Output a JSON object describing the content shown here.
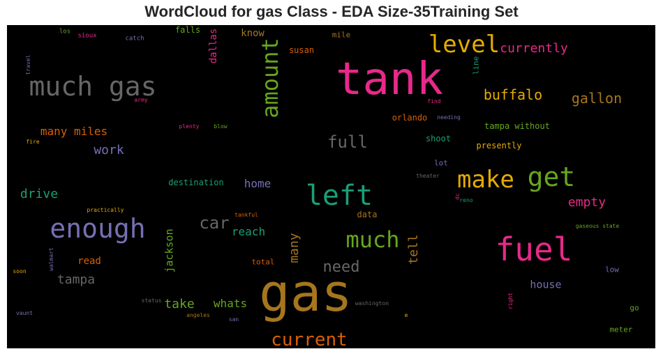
{
  "chart_data": {
    "type": "wordcloud",
    "title": "WordCloud for gas Class - EDA Size-35Training Set",
    "background": "#000000",
    "colormap": "Dark2",
    "words": [
      {
        "text": "gas",
        "weight": 1.0,
        "color": "#a6761d",
        "orientation": "horizontal"
      },
      {
        "text": "tank",
        "weight": 0.8,
        "color": "#e7298a",
        "orientation": "horizontal"
      },
      {
        "text": "much gas",
        "weight": 0.55,
        "color": "#666666",
        "orientation": "horizontal"
      },
      {
        "text": "fuel",
        "weight": 0.65,
        "color": "#e7298a",
        "orientation": "horizontal"
      },
      {
        "text": "left",
        "weight": 0.6,
        "color": "#1b9e77",
        "orientation": "horizontal"
      },
      {
        "text": "enough",
        "weight": 0.55,
        "color": "#7570b3",
        "orientation": "horizontal"
      },
      {
        "text": "get",
        "weight": 0.55,
        "color": "#66a61e",
        "orientation": "horizontal"
      },
      {
        "text": "make",
        "weight": 0.5,
        "color": "#e6ab02",
        "orientation": "horizontal"
      },
      {
        "text": "level",
        "weight": 0.45,
        "color": "#e6ab02",
        "orientation": "horizontal"
      },
      {
        "text": "amount",
        "weight": 0.4,
        "color": "#66a61e",
        "orientation": "vertical"
      },
      {
        "text": "much",
        "weight": 0.4,
        "color": "#66a61e",
        "orientation": "horizontal"
      },
      {
        "text": "current",
        "weight": 0.35,
        "color": "#d95f02",
        "orientation": "horizontal"
      },
      {
        "text": "car",
        "weight": 0.3,
        "color": "#666666",
        "orientation": "horizontal"
      },
      {
        "text": "full",
        "weight": 0.3,
        "color": "#666666",
        "orientation": "horizontal"
      },
      {
        "text": "buffalo",
        "weight": 0.28,
        "color": "#e6ab02",
        "orientation": "horizontal"
      },
      {
        "text": "gallon",
        "weight": 0.26,
        "color": "#a6761d",
        "orientation": "horizontal"
      },
      {
        "text": "need",
        "weight": 0.27,
        "color": "#666666",
        "orientation": "horizontal"
      },
      {
        "text": "empty",
        "weight": 0.25,
        "color": "#e7298a",
        "orientation": "horizontal"
      },
      {
        "text": "currently",
        "weight": 0.24,
        "color": "#e7298a",
        "orientation": "horizontal"
      },
      {
        "text": "many miles",
        "weight": 0.23,
        "color": "#d95f02",
        "orientation": "horizontal"
      },
      {
        "text": "work",
        "weight": 0.23,
        "color": "#7570b3",
        "orientation": "horizontal"
      },
      {
        "text": "drive",
        "weight": 0.24,
        "color": "#1b9e77",
        "orientation": "horizontal"
      },
      {
        "text": "many",
        "weight": 0.22,
        "color": "#a6761d",
        "orientation": "vertical"
      },
      {
        "text": "tampa",
        "weight": 0.22,
        "color": "#666666",
        "orientation": "horizontal"
      },
      {
        "text": "take",
        "weight": 0.22,
        "color": "#66a61e",
        "orientation": "horizontal"
      },
      {
        "text": "whats",
        "weight": 0.21,
        "color": "#66a61e",
        "orientation": "horizontal"
      },
      {
        "text": "home",
        "weight": 0.21,
        "color": "#7570b3",
        "orientation": "horizontal"
      },
      {
        "text": "reach",
        "weight": 0.21,
        "color": "#1b9e77",
        "orientation": "horizontal"
      },
      {
        "text": "tell",
        "weight": 0.21,
        "color": "#a6761d",
        "orientation": "vertical"
      },
      {
        "text": "jackson",
        "weight": 0.19,
        "color": "#66a61e",
        "orientation": "vertical"
      },
      {
        "text": "dallas",
        "weight": 0.18,
        "color": "#e7298a",
        "orientation": "vertical"
      },
      {
        "text": "house",
        "weight": 0.19,
        "color": "#7570b3",
        "orientation": "horizontal"
      },
      {
        "text": "read",
        "weight": 0.18,
        "color": "#d95f02",
        "orientation": "horizontal"
      },
      {
        "text": "know",
        "weight": 0.18,
        "color": "#a6761d",
        "orientation": "horizontal"
      },
      {
        "text": "susan",
        "weight": 0.15,
        "color": "#d95f02",
        "orientation": "horizontal"
      },
      {
        "text": "falls",
        "weight": 0.15,
        "color": "#66a61e",
        "orientation": "horizontal"
      },
      {
        "text": "mile",
        "weight": 0.14,
        "color": "#a6761d",
        "orientation": "horizontal"
      },
      {
        "text": "line",
        "weight": 0.13,
        "color": "#1b9e77",
        "orientation": "vertical"
      },
      {
        "text": "tampa without",
        "weight": 0.14,
        "color": "#66a61e",
        "orientation": "horizontal"
      },
      {
        "text": "presently",
        "weight": 0.14,
        "color": "#e6ab02",
        "orientation": "horizontal"
      },
      {
        "text": "shoot",
        "weight": 0.14,
        "color": "#1b9e77",
        "orientation": "horizontal"
      },
      {
        "text": "orlando",
        "weight": 0.14,
        "color": "#d95f02",
        "orientation": "horizontal"
      },
      {
        "text": "destination",
        "weight": 0.14,
        "color": "#1b9e77",
        "orientation": "horizontal"
      },
      {
        "text": "data",
        "weight": 0.14,
        "color": "#a6761d",
        "orientation": "horizontal"
      },
      {
        "text": "total",
        "weight": 0.13,
        "color": "#d95f02",
        "orientation": "horizontal"
      },
      {
        "text": "lot",
        "weight": 0.13,
        "color": "#7570b3",
        "orientation": "horizontal"
      },
      {
        "text": "low",
        "weight": 0.13,
        "color": "#7570b3",
        "orientation": "horizontal"
      },
      {
        "text": "go",
        "weight": 0.13,
        "color": "#66a61e",
        "orientation": "horizontal"
      },
      {
        "text": "meter",
        "weight": 0.13,
        "color": "#66a61e",
        "orientation": "horizontal"
      },
      {
        "text": "los",
        "weight": 0.09,
        "color": "#66a61e",
        "orientation": "horizontal"
      },
      {
        "text": "sioux",
        "weight": 0.09,
        "color": "#e7298a",
        "orientation": "horizontal"
      },
      {
        "text": "catch",
        "weight": 0.09,
        "color": "#7570b3",
        "orientation": "horizontal"
      },
      {
        "text": "travel",
        "weight": 0.08,
        "color": "#7570b3",
        "orientation": "vertical"
      },
      {
        "text": "army",
        "weight": 0.08,
        "color": "#e7298a",
        "orientation": "horizontal"
      },
      {
        "text": "find",
        "weight": 0.08,
        "color": "#e7298a",
        "orientation": "horizontal"
      },
      {
        "text": "needing",
        "weight": 0.08,
        "color": "#7570b3",
        "orientation": "horizontal"
      },
      {
        "text": "plenty",
        "weight": 0.08,
        "color": "#e7298a",
        "orientation": "horizontal"
      },
      {
        "text": "blow",
        "weight": 0.08,
        "color": "#66a61e",
        "orientation": "horizontal"
      },
      {
        "text": "fire",
        "weight": 0.08,
        "color": "#e6ab02",
        "orientation": "horizontal"
      },
      {
        "text": "theater",
        "weight": 0.08,
        "color": "#666666",
        "orientation": "horizontal"
      },
      {
        "text": "dc",
        "weight": 0.08,
        "color": "#e7298a",
        "orientation": "vertical"
      },
      {
        "text": "reno",
        "weight": 0.08,
        "color": "#1b9e77",
        "orientation": "horizontal"
      },
      {
        "text": "practically",
        "weight": 0.08,
        "color": "#e6ab02",
        "orientation": "horizontal"
      },
      {
        "text": "tankful",
        "weight": 0.08,
        "color": "#d95f02",
        "orientation": "horizontal"
      },
      {
        "text": "gaseous state",
        "weight": 0.08,
        "color": "#66a61e",
        "orientation": "horizontal"
      },
      {
        "text": "walmart",
        "weight": 0.08,
        "color": "#7570b3",
        "orientation": "vertical"
      },
      {
        "text": "soon",
        "weight": 0.08,
        "color": "#e6ab02",
        "orientation": "horizontal"
      },
      {
        "text": "status",
        "weight": 0.08,
        "color": "#666666",
        "orientation": "horizontal"
      },
      {
        "text": "washington",
        "weight": 0.08,
        "color": "#666666",
        "orientation": "horizontal"
      },
      {
        "text": "right",
        "weight": 0.08,
        "color": "#e7298a",
        "orientation": "vertical"
      },
      {
        "text": "angeles",
        "weight": 0.08,
        "color": "#a6761d",
        "orientation": "horizontal"
      },
      {
        "text": "san",
        "weight": 0.08,
        "color": "#7570b3",
        "orientation": "horizontal"
      },
      {
        "text": "e",
        "weight": 0.08,
        "color": "#e6ab02",
        "orientation": "horizontal"
      },
      {
        "text": "vaunt",
        "weight": 0.08,
        "color": "#7570b3",
        "orientation": "horizontal"
      }
    ]
  }
}
